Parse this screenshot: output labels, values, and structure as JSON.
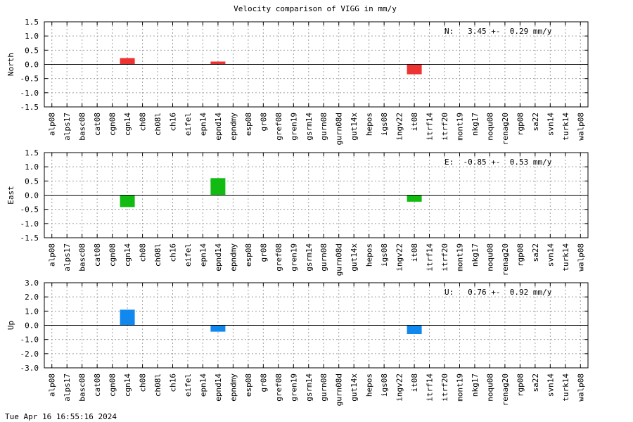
{
  "title": "Velocity comparison of VIGG in mm/y",
  "footer": "Tue Apr 16 16:55:16 2024",
  "chart_data": {
    "type": "bar",
    "categories": [
      "alp08",
      "alps17",
      "basc08",
      "cat08",
      "cgn08",
      "cgn14",
      "ch08",
      "ch08l",
      "ch16",
      "eifel",
      "epn14",
      "epnd14",
      "epndmy",
      "esp08",
      "gr08",
      "gref08",
      "gren19",
      "gsrm14",
      "gurn08",
      "gurn08d",
      "gut14x",
      "hepos",
      "igs08",
      "ingv22",
      "it08",
      "itrf14",
      "itrf20",
      "mont19",
      "nkg17",
      "noqu08",
      "renag20",
      "rgp08",
      "sa22",
      "svn14",
      "turk14",
      "walp08"
    ],
    "grid": true,
    "panels": [
      {
        "ylabel": "North",
        "annotation": "N:   3.45 +-  0.29 mm/y",
        "color": "#ee3333",
        "ylim": [
          -1.5,
          1.5
        ],
        "yticks": [
          "1.5",
          "1.0",
          "0.5",
          "0.0",
          "-0.5",
          "-1.0",
          "-1.5"
        ],
        "ytick_values": [
          1.5,
          1.0,
          0.5,
          0.0,
          -0.5,
          -1.0,
          -1.5
        ],
        "values": [
          0,
          0,
          0,
          0,
          0,
          0.22,
          0,
          0,
          0,
          0,
          0,
          0.1,
          0,
          0,
          0,
          0,
          0,
          0,
          0,
          0,
          0,
          0,
          0,
          0,
          -0.35,
          0,
          0,
          0,
          0,
          0,
          0,
          0,
          0,
          0,
          0,
          0
        ]
      },
      {
        "ylabel": "East",
        "annotation": "E:  -0.85 +-  0.53 mm/y",
        "color": "#11bb11",
        "ylim": [
          -1.5,
          1.5
        ],
        "yticks": [
          "1.5",
          "1.0",
          "0.5",
          "0.0",
          "-0.5",
          "-1.0",
          "-1.5"
        ],
        "ytick_values": [
          1.5,
          1.0,
          0.5,
          0.0,
          -0.5,
          -1.0,
          -1.5
        ],
        "values": [
          0,
          0,
          0,
          0,
          0,
          -0.42,
          0,
          0,
          0,
          0,
          0,
          0.6,
          0,
          0,
          0,
          0,
          0,
          0,
          0,
          0,
          0,
          0,
          0,
          0,
          -0.23,
          0,
          0,
          0,
          0,
          0,
          0,
          0,
          0,
          0,
          0,
          0
        ]
      },
      {
        "ylabel": "Up",
        "annotation": "U:   0.76 +-  0.92 mm/y",
        "color": "#1188ee",
        "ylim": [
          -3.0,
          3.0
        ],
        "yticks": [
          "3.0",
          "2.0",
          "1.0",
          "0.0",
          "-1.0",
          "-2.0",
          "-3.0"
        ],
        "ytick_values": [
          3.0,
          2.0,
          1.0,
          0.0,
          -1.0,
          -2.0,
          -3.0
        ],
        "values": [
          0,
          0,
          0,
          0,
          0,
          1.1,
          0,
          0,
          0,
          0,
          0,
          -0.45,
          0,
          0,
          0,
          0,
          0,
          0,
          0,
          0,
          0,
          0,
          0,
          0,
          -0.62,
          0,
          0,
          0,
          0,
          0,
          0,
          0,
          0,
          0,
          0,
          0
        ]
      }
    ]
  }
}
